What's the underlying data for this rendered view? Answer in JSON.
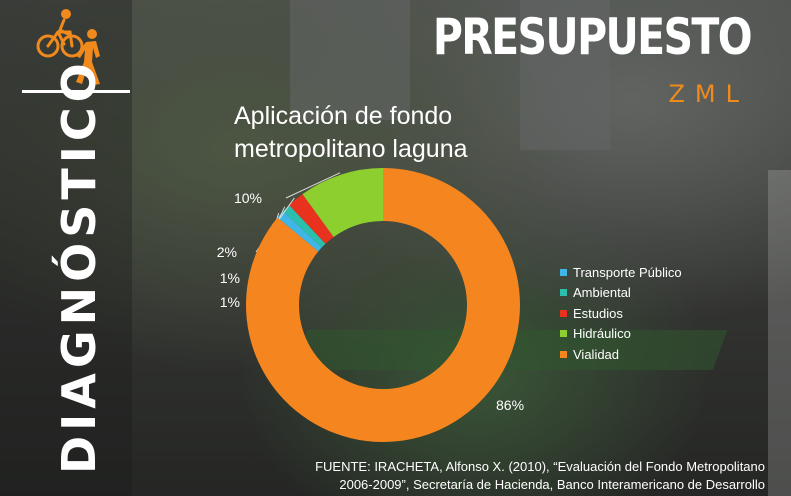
{
  "header": {
    "title": "PRESUPUESTO",
    "subtitle": "ZML",
    "section_vertical": "DIAGNÓSTICO"
  },
  "colors": {
    "accent": "#f08a1c",
    "transporte": "#3fb6e6",
    "ambiental": "#2bbfae",
    "estudios": "#e8321e",
    "hidraulico": "#8ccf2e",
    "vialidad": "#f5861f"
  },
  "icons": [
    "cyclist-icon",
    "pedestrian-icon"
  ],
  "chart_data": {
    "type": "pie",
    "title": "Aplicación de fondo metropolitano laguna",
    "donut": true,
    "legend_position": "right",
    "labels": [
      "Transporte Público",
      "Ambiental",
      "Estudios",
      "Hidráulico",
      "Vialidad"
    ],
    "values": [
      1,
      1,
      2,
      10,
      86
    ],
    "data_labels": [
      "1%",
      "1%",
      "2%",
      "10%",
      "86%"
    ],
    "colors": [
      "#3fb6e6",
      "#2bbfae",
      "#e8321e",
      "#8ccf2e",
      "#f5861f"
    ]
  },
  "source": {
    "line1": "FUENTE: IRACHETA, Alfonso X. (2010), “Evaluación del Fondo Metropolitano",
    "line2": "2006-2009”, Secretaría de Hacienda, Banco Interamericano de Desarrollo"
  }
}
